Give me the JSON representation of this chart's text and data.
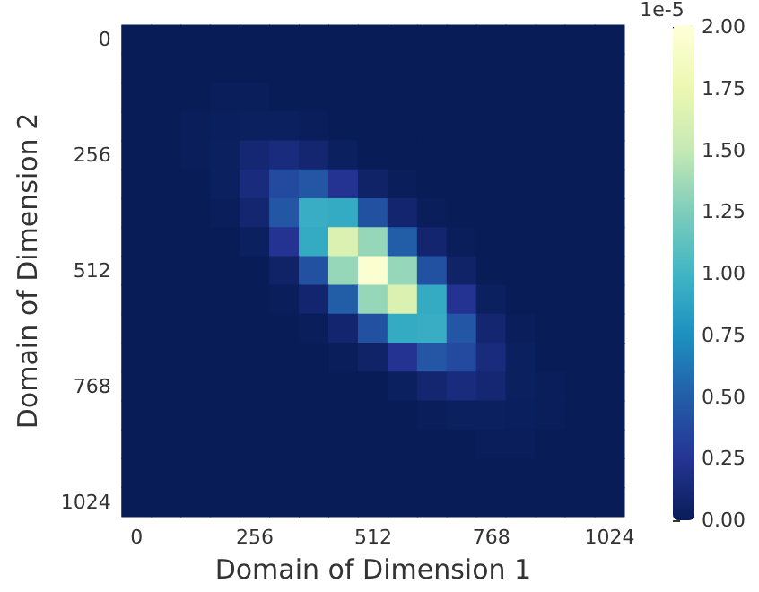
{
  "chart_data": {
    "type": "heatmap",
    "xlabel": "Domain of Dimension 1",
    "ylabel": "Domain of Dimension 2",
    "clabel": "1e-5",
    "categories": [
      "0",
      null,
      null,
      null,
      "256",
      null,
      null,
      null,
      "512",
      null,
      null,
      null,
      "768",
      null,
      null,
      null,
      "1024"
    ],
    "y_categories": [
      "0",
      null,
      null,
      null,
      "256",
      null,
      null,
      null,
      "512",
      null,
      null,
      null,
      "768",
      null,
      null,
      null,
      "1024"
    ],
    "clim": [
      0,
      2
    ],
    "cticks": [
      {
        "value": 0,
        "label": "0.00"
      },
      {
        "value": 0.25,
        "label": "0.25"
      },
      {
        "value": 0.5,
        "label": "0.50"
      },
      {
        "value": 0.75,
        "label": "0.75"
      },
      {
        "value": 1,
        "label": "1.00"
      },
      {
        "value": 1.25,
        "label": "1.25"
      },
      {
        "value": 1.5,
        "label": "1.50"
      },
      {
        "value": 1.75,
        "label": "1.75"
      },
      {
        "value": 2,
        "label": "2.00"
      }
    ],
    "cells": [
      [
        0,
        0,
        0,
        0,
        0,
        0,
        0,
        0,
        0,
        0,
        0,
        0,
        0,
        0,
        0,
        0,
        0
      ],
      [
        0,
        0,
        0,
        0,
        0,
        0,
        0,
        0,
        0,
        0,
        0,
        0,
        0,
        0,
        0,
        0,
        0
      ],
      [
        0,
        0,
        0,
        0.01,
        0.01,
        0,
        0,
        0,
        0,
        0,
        0,
        0,
        0,
        0,
        0,
        0,
        0
      ],
      [
        0,
        0,
        0.01,
        0.02,
        0.03,
        0.03,
        0.01,
        0,
        0,
        0,
        0,
        0,
        0,
        0,
        0,
        0,
        0
      ],
      [
        0,
        0,
        0.01,
        0.03,
        0.11,
        0.15,
        0.1,
        0.03,
        0,
        0,
        0,
        0,
        0,
        0,
        0,
        0,
        0
      ],
      [
        0,
        0,
        0,
        0.03,
        0.15,
        0.38,
        0.45,
        0.24,
        0.06,
        0.01,
        0,
        0,
        0,
        0,
        0,
        0,
        0
      ],
      [
        0,
        0,
        0,
        0.01,
        0.1,
        0.45,
        0.94,
        0.92,
        0.42,
        0.09,
        0.01,
        0,
        0,
        0,
        0,
        0,
        0
      ],
      [
        0,
        0,
        0,
        0,
        0.03,
        0.24,
        0.92,
        1.63,
        1.33,
        0.5,
        0.09,
        0.01,
        0,
        0,
        0,
        0,
        0
      ],
      [
        0,
        0,
        0,
        0,
        0,
        0.06,
        0.42,
        1.33,
        1.95,
        1.33,
        0.42,
        0.06,
        0,
        0,
        0,
        0,
        0
      ],
      [
        0,
        0,
        0,
        0,
        0,
        0.01,
        0.09,
        0.5,
        1.33,
        1.63,
        0.92,
        0.24,
        0.03,
        0,
        0,
        0,
        0
      ],
      [
        0,
        0,
        0,
        0,
        0,
        0,
        0.01,
        0.09,
        0.42,
        0.92,
        0.94,
        0.45,
        0.1,
        0.01,
        0,
        0,
        0
      ],
      [
        0,
        0,
        0,
        0,
        0,
        0,
        0,
        0.01,
        0.06,
        0.24,
        0.45,
        0.38,
        0.15,
        0.03,
        0,
        0,
        0
      ],
      [
        0,
        0,
        0,
        0,
        0,
        0,
        0,
        0,
        0,
        0.03,
        0.1,
        0.15,
        0.11,
        0.03,
        0.01,
        0,
        0
      ],
      [
        0,
        0,
        0,
        0,
        0,
        0,
        0,
        0,
        0,
        0,
        0.01,
        0.03,
        0.03,
        0.02,
        0.01,
        0,
        0
      ],
      [
        0,
        0,
        0,
        0,
        0,
        0,
        0,
        0,
        0,
        0,
        0,
        0,
        0.01,
        0.01,
        0,
        0,
        0
      ],
      [
        0,
        0,
        0,
        0,
        0,
        0,
        0,
        0,
        0,
        0,
        0,
        0,
        0,
        0,
        0,
        0,
        0
      ],
      [
        0,
        0,
        0,
        0,
        0,
        0,
        0,
        0,
        0,
        0,
        0,
        0,
        0,
        0,
        0,
        0,
        0
      ]
    ]
  }
}
